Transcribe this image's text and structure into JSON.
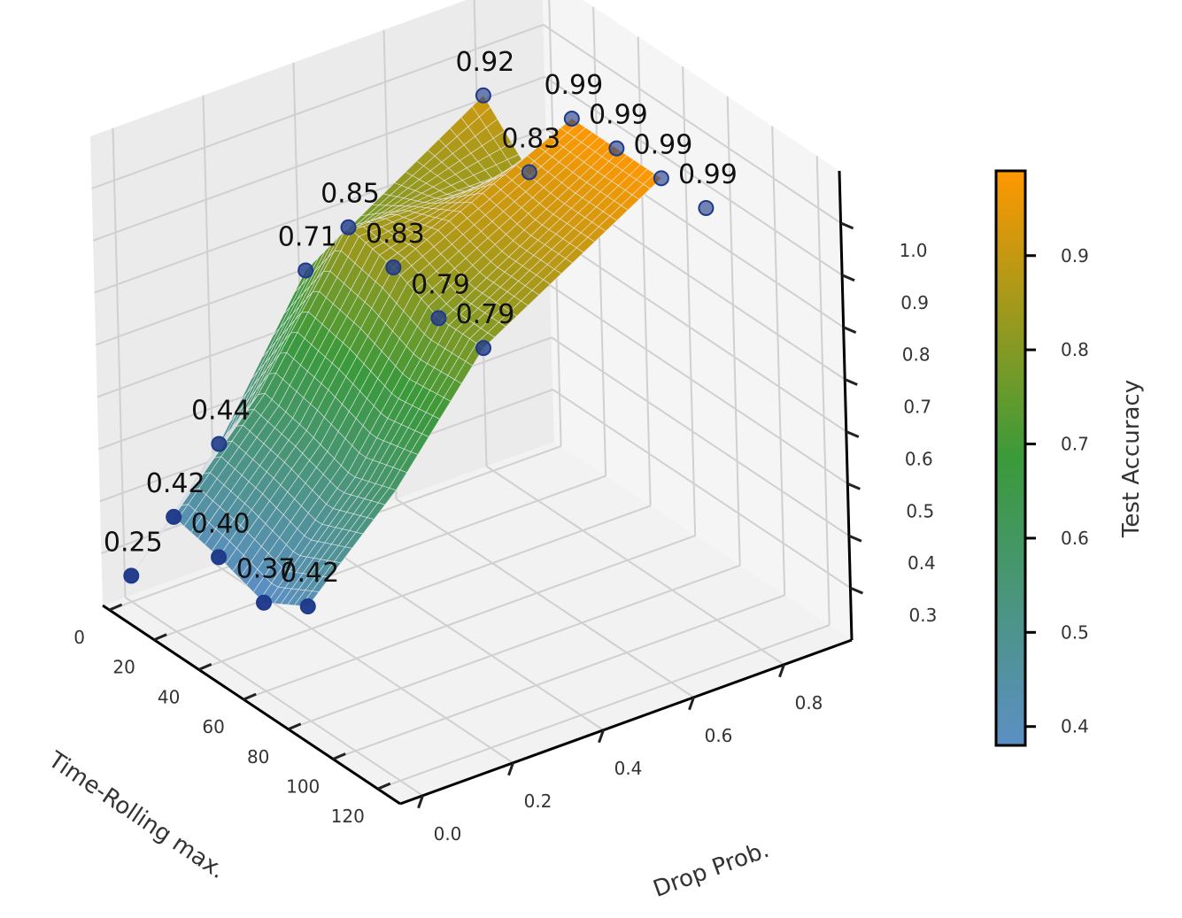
{
  "chart_data": {
    "type": "surface3d",
    "title": "",
    "xlabel": "Time-Rolling max.",
    "ylabel": "Drop Prob.",
    "zlabel": "",
    "x_ticks": [
      "0",
      "20",
      "40",
      "60",
      "80",
      "100",
      "120"
    ],
    "y_ticks": [
      "0.0",
      "0.2",
      "0.4",
      "0.6",
      "0.8"
    ],
    "z_ticks": [
      "0.3",
      "0.4",
      "0.5",
      "0.6",
      "0.7",
      "0.8",
      "0.9",
      "1.0"
    ],
    "xlim": [
      -3,
      130
    ],
    "ylim": [
      -0.05,
      0.95
    ],
    "zlim": [
      0.2,
      1.1
    ],
    "x_values": [
      0,
      20,
      40,
      60,
      80
    ],
    "drop_values": [
      0.0,
      0.2,
      0.4,
      0.8
    ],
    "points": [
      {
        "x": 0,
        "y": 0.0,
        "z": 0.25,
        "label": "0.25"
      },
      {
        "x": 20,
        "y": 0.0,
        "z": 0.42,
        "label": "0.42"
      },
      {
        "x": 40,
        "y": 0.0,
        "z": 0.4,
        "label": "0.40"
      },
      {
        "x": 60,
        "y": 0.0,
        "z": 0.37,
        "label": "0.37"
      },
      {
        "x": 80,
        "y": 0.0,
        "z": 0.42,
        "label": "0.42"
      },
      {
        "x": 0,
        "y": 0.2,
        "z": 0.44,
        "label": "0.44"
      },
      {
        "x": 0,
        "y": 0.4,
        "z": 0.71,
        "label": "0.71"
      },
      {
        "x": 20,
        "y": 0.4,
        "z": 0.85,
        "label": "0.85"
      },
      {
        "x": 40,
        "y": 0.4,
        "z": 0.83,
        "label": "0.83"
      },
      {
        "x": 60,
        "y": 0.4,
        "z": 0.79,
        "label": "0.79"
      },
      {
        "x": 80,
        "y": 0.4,
        "z": 0.79,
        "label": "0.79"
      },
      {
        "x": 0,
        "y": 0.8,
        "z": 0.92,
        "label": "0.92"
      },
      {
        "x": 20,
        "y": 0.8,
        "z": 0.83,
        "label": "0.83"
      },
      {
        "x": 40,
        "y": 0.8,
        "z": 0.99,
        "label": "0.99"
      },
      {
        "x": 60,
        "y": 0.8,
        "z": 0.99,
        "label": "0.99"
      },
      {
        "x": 80,
        "y": 0.8,
        "z": 0.99,
        "label": "0.99"
      },
      {
        "x": 100,
        "y": 0.8,
        "z": 0.99,
        "label": "0.99"
      }
    ],
    "surface_grid": [
      [
        0.25,
        0.42,
        0.4,
        0.37,
        0.42
      ],
      [
        0.44,
        0.6,
        0.58,
        0.55,
        0.58
      ],
      [
        0.71,
        0.85,
        0.83,
        0.79,
        0.79
      ],
      [
        0.92,
        0.83,
        0.99,
        0.99,
        0.99
      ]
    ],
    "colorbar": {
      "label": "Test Accuracy",
      "ticks": [
        "0.4",
        "0.5",
        "0.6",
        "0.7",
        "0.8",
        "0.9"
      ],
      "range": [
        0.38,
        0.99
      ],
      "colors": [
        "#5b8fc4",
        "#3a9a3a",
        "#ff9800"
      ]
    },
    "marker_color": "#1f3a8a"
  }
}
